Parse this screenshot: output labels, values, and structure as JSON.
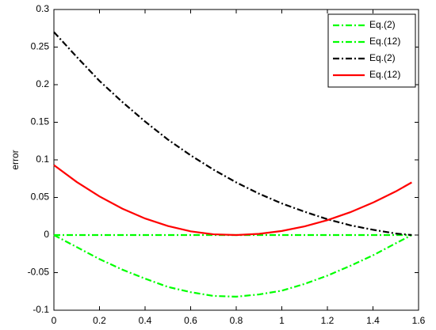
{
  "chart_data": {
    "type": "line",
    "ylabel": "error",
    "x": [
      0,
      0.1,
      0.2,
      0.3,
      0.4,
      0.5,
      0.6,
      0.7,
      0.8,
      0.9,
      1.0,
      1.1,
      1.2,
      1.3,
      1.4,
      1.5,
      1.57
    ],
    "series": [
      {
        "name": "Eq.(2)",
        "color": "#00ff00",
        "linestyle": "dashdot",
        "values": [
          0,
          -0.016,
          -0.032,
          -0.046,
          -0.058,
          -0.069,
          -0.076,
          -0.081,
          -0.082,
          -0.079,
          -0.074,
          -0.065,
          -0.054,
          -0.041,
          -0.027,
          -0.011,
          0
        ]
      },
      {
        "name": "Eq.(12)",
        "color": "#00ff00",
        "linestyle": "dashdot",
        "values": [
          0,
          0,
          0,
          0,
          0,
          0,
          0,
          0,
          0,
          0,
          0,
          0,
          0,
          0,
          0,
          0,
          0
        ]
      },
      {
        "name": "Eq.(2)",
        "color": "#000000",
        "linestyle": "dashdot",
        "values": [
          0.27,
          0.237,
          0.205,
          0.177,
          0.151,
          0.127,
          0.106,
          0.087,
          0.07,
          0.055,
          0.042,
          0.031,
          0.021,
          0.013,
          0.007,
          0.002,
          0
        ]
      },
      {
        "name": "Eq.(12)",
        "color": "#ff0000",
        "linestyle": "solid",
        "values": [
          0.093,
          0.0706,
          0.0514,
          0.0351,
          0.022,
          0.012,
          0.0049,
          0.001,
          0,
          0.0016,
          0.0054,
          0.0115,
          0.0198,
          0.0303,
          0.0431,
          0.058,
          0.07
        ]
      }
    ],
    "xlim": [
      0,
      1.6
    ],
    "xticks": [
      0,
      0.2,
      0.4,
      0.6,
      0.8,
      1,
      1.2,
      1.4,
      1.6
    ],
    "ylim": [
      -0.1,
      0.3
    ],
    "yticks": [
      -0.1,
      -0.05,
      0,
      0.05,
      0.1,
      0.15,
      0.2,
      0.25,
      0.3
    ],
    "grid": false,
    "legend": "upper right"
  }
}
